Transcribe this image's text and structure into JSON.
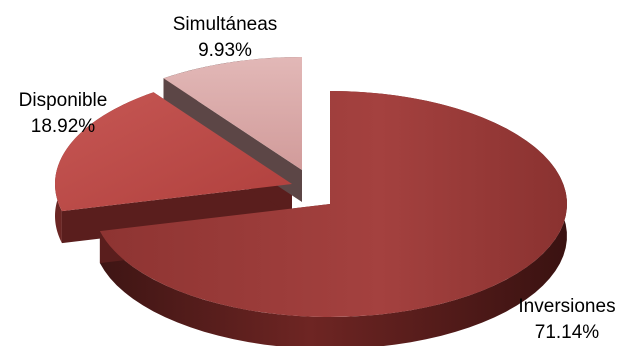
{
  "chart_data": {
    "type": "pie",
    "style": "3d-exploded",
    "slices": [
      {
        "label": "Inversiones",
        "value": 71.14,
        "value_label": "71.14%",
        "color": "#9A3C3A"
      },
      {
        "label": "Disponible",
        "value": 18.92,
        "value_label": "18.92%",
        "color": "#C0504D"
      },
      {
        "label": "Simultáneas",
        "value": 9.93,
        "value_label": "9.93%",
        "color": "#D8A7A6"
      }
    ],
    "legend": "none"
  }
}
